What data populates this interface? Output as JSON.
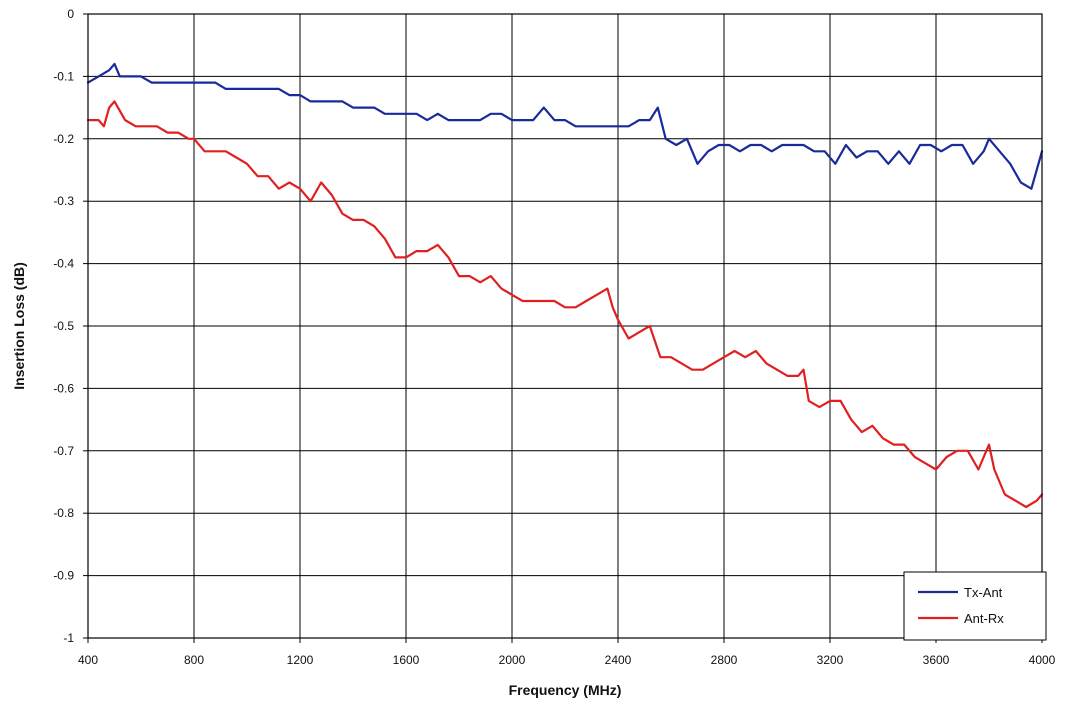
{
  "chart_data": {
    "type": "line",
    "title": "",
    "xlabel": "Frequency (MHz)",
    "ylabel": "Insertion Loss (dB)",
    "xlim": [
      400,
      4000
    ],
    "ylim": [
      -1,
      0
    ],
    "x_ticks": [
      400,
      800,
      1200,
      1600,
      2000,
      2400,
      2800,
      3200,
      3600,
      4000
    ],
    "x_tick_labels": [
      "400",
      "800",
      "1200",
      "1600",
      "2000",
      "2400",
      "2800",
      "3200",
      "3600",
      "4000"
    ],
    "y_ticks": [
      0,
      -0.1,
      -0.2,
      -0.3,
      -0.4,
      -0.5,
      -0.6,
      -0.7,
      -0.8,
      -0.9,
      -1
    ],
    "y_tick_labels": [
      "0",
      "-0.1",
      "-0.2",
      "-0.3",
      "-0.4",
      "-0.5",
      "-0.6",
      "-0.7",
      "-0.8",
      "-0.9",
      "-1"
    ],
    "grid": true,
    "legend_position": "bottom-right",
    "series": [
      {
        "name": "Tx-Ant",
        "color": "#1a2a9a",
        "points": [
          [
            400,
            -0.11
          ],
          [
            440,
            -0.1
          ],
          [
            480,
            -0.09
          ],
          [
            500,
            -0.08
          ],
          [
            520,
            -0.1
          ],
          [
            560,
            -0.1
          ],
          [
            600,
            -0.1
          ],
          [
            640,
            -0.11
          ],
          [
            680,
            -0.11
          ],
          [
            720,
            -0.11
          ],
          [
            760,
            -0.11
          ],
          [
            800,
            -0.11
          ],
          [
            840,
            -0.11
          ],
          [
            880,
            -0.11
          ],
          [
            920,
            -0.12
          ],
          [
            960,
            -0.12
          ],
          [
            1000,
            -0.12
          ],
          [
            1040,
            -0.12
          ],
          [
            1080,
            -0.12
          ],
          [
            1120,
            -0.12
          ],
          [
            1160,
            -0.13
          ],
          [
            1200,
            -0.13
          ],
          [
            1240,
            -0.14
          ],
          [
            1280,
            -0.14
          ],
          [
            1320,
            -0.14
          ],
          [
            1360,
            -0.14
          ],
          [
            1400,
            -0.15
          ],
          [
            1440,
            -0.15
          ],
          [
            1480,
            -0.15
          ],
          [
            1520,
            -0.16
          ],
          [
            1560,
            -0.16
          ],
          [
            1600,
            -0.16
          ],
          [
            1640,
            -0.16
          ],
          [
            1680,
            -0.17
          ],
          [
            1720,
            -0.16
          ],
          [
            1760,
            -0.17
          ],
          [
            1800,
            -0.17
          ],
          [
            1840,
            -0.17
          ],
          [
            1880,
            -0.17
          ],
          [
            1920,
            -0.16
          ],
          [
            1960,
            -0.16
          ],
          [
            2000,
            -0.17
          ],
          [
            2040,
            -0.17
          ],
          [
            2080,
            -0.17
          ],
          [
            2120,
            -0.15
          ],
          [
            2160,
            -0.17
          ],
          [
            2200,
            -0.17
          ],
          [
            2240,
            -0.18
          ],
          [
            2280,
            -0.18
          ],
          [
            2320,
            -0.18
          ],
          [
            2360,
            -0.18
          ],
          [
            2400,
            -0.18
          ],
          [
            2440,
            -0.18
          ],
          [
            2480,
            -0.17
          ],
          [
            2520,
            -0.17
          ],
          [
            2550,
            -0.15
          ],
          [
            2580,
            -0.2
          ],
          [
            2620,
            -0.21
          ],
          [
            2660,
            -0.2
          ],
          [
            2700,
            -0.24
          ],
          [
            2740,
            -0.22
          ],
          [
            2780,
            -0.21
          ],
          [
            2820,
            -0.21
          ],
          [
            2860,
            -0.22
          ],
          [
            2900,
            -0.21
          ],
          [
            2940,
            -0.21
          ],
          [
            2980,
            -0.22
          ],
          [
            3020,
            -0.21
          ],
          [
            3060,
            -0.21
          ],
          [
            3100,
            -0.21
          ],
          [
            3140,
            -0.22
          ],
          [
            3180,
            -0.22
          ],
          [
            3220,
            -0.24
          ],
          [
            3260,
            -0.21
          ],
          [
            3300,
            -0.23
          ],
          [
            3340,
            -0.22
          ],
          [
            3380,
            -0.22
          ],
          [
            3420,
            -0.24
          ],
          [
            3460,
            -0.22
          ],
          [
            3500,
            -0.24
          ],
          [
            3540,
            -0.21
          ],
          [
            3580,
            -0.21
          ],
          [
            3620,
            -0.22
          ],
          [
            3660,
            -0.21
          ],
          [
            3700,
            -0.21
          ],
          [
            3740,
            -0.24
          ],
          [
            3780,
            -0.22
          ],
          [
            3800,
            -0.2
          ],
          [
            3840,
            -0.22
          ],
          [
            3880,
            -0.24
          ],
          [
            3920,
            -0.27
          ],
          [
            3960,
            -0.28
          ],
          [
            4000,
            -0.22
          ]
        ]
      },
      {
        "name": "Ant-Rx",
        "color": "#e02020",
        "points": [
          [
            400,
            -0.17
          ],
          [
            440,
            -0.17
          ],
          [
            460,
            -0.18
          ],
          [
            480,
            -0.15
          ],
          [
            500,
            -0.14
          ],
          [
            540,
            -0.17
          ],
          [
            580,
            -0.18
          ],
          [
            620,
            -0.18
          ],
          [
            660,
            -0.18
          ],
          [
            700,
            -0.19
          ],
          [
            740,
            -0.19
          ],
          [
            780,
            -0.2
          ],
          [
            800,
            -0.2
          ],
          [
            840,
            -0.22
          ],
          [
            880,
            -0.22
          ],
          [
            920,
            -0.22
          ],
          [
            960,
            -0.23
          ],
          [
            1000,
            -0.24
          ],
          [
            1040,
            -0.26
          ],
          [
            1080,
            -0.26
          ],
          [
            1120,
            -0.28
          ],
          [
            1160,
            -0.27
          ],
          [
            1200,
            -0.28
          ],
          [
            1240,
            -0.3
          ],
          [
            1280,
            -0.27
          ],
          [
            1320,
            -0.29
          ],
          [
            1360,
            -0.32
          ],
          [
            1400,
            -0.33
          ],
          [
            1440,
            -0.33
          ],
          [
            1480,
            -0.34
          ],
          [
            1520,
            -0.36
          ],
          [
            1560,
            -0.39
          ],
          [
            1600,
            -0.39
          ],
          [
            1640,
            -0.38
          ],
          [
            1680,
            -0.38
          ],
          [
            1720,
            -0.37
          ],
          [
            1760,
            -0.39
          ],
          [
            1800,
            -0.42
          ],
          [
            1840,
            -0.42
          ],
          [
            1880,
            -0.43
          ],
          [
            1920,
            -0.42
          ],
          [
            1960,
            -0.44
          ],
          [
            2000,
            -0.45
          ],
          [
            2040,
            -0.46
          ],
          [
            2080,
            -0.46
          ],
          [
            2120,
            -0.46
          ],
          [
            2160,
            -0.46
          ],
          [
            2200,
            -0.47
          ],
          [
            2240,
            -0.47
          ],
          [
            2280,
            -0.46
          ],
          [
            2320,
            -0.45
          ],
          [
            2360,
            -0.44
          ],
          [
            2380,
            -0.47
          ],
          [
            2400,
            -0.49
          ],
          [
            2440,
            -0.52
          ],
          [
            2480,
            -0.51
          ],
          [
            2520,
            -0.5
          ],
          [
            2560,
            -0.55
          ],
          [
            2600,
            -0.55
          ],
          [
            2640,
            -0.56
          ],
          [
            2680,
            -0.57
          ],
          [
            2720,
            -0.57
          ],
          [
            2760,
            -0.56
          ],
          [
            2800,
            -0.55
          ],
          [
            2840,
            -0.54
          ],
          [
            2880,
            -0.55
          ],
          [
            2920,
            -0.54
          ],
          [
            2960,
            -0.56
          ],
          [
            3000,
            -0.57
          ],
          [
            3040,
            -0.58
          ],
          [
            3080,
            -0.58
          ],
          [
            3100,
            -0.57
          ],
          [
            3120,
            -0.62
          ],
          [
            3160,
            -0.63
          ],
          [
            3200,
            -0.62
          ],
          [
            3240,
            -0.62
          ],
          [
            3280,
            -0.65
          ],
          [
            3320,
            -0.67
          ],
          [
            3360,
            -0.66
          ],
          [
            3400,
            -0.68
          ],
          [
            3440,
            -0.69
          ],
          [
            3480,
            -0.69
          ],
          [
            3520,
            -0.71
          ],
          [
            3560,
            -0.72
          ],
          [
            3600,
            -0.73
          ],
          [
            3640,
            -0.71
          ],
          [
            3680,
            -0.7
          ],
          [
            3720,
            -0.7
          ],
          [
            3760,
            -0.73
          ],
          [
            3800,
            -0.69
          ],
          [
            3820,
            -0.73
          ],
          [
            3860,
            -0.77
          ],
          [
            3900,
            -0.78
          ],
          [
            3940,
            -0.79
          ],
          [
            3980,
            -0.78
          ],
          [
            4000,
            -0.77
          ]
        ]
      }
    ]
  }
}
